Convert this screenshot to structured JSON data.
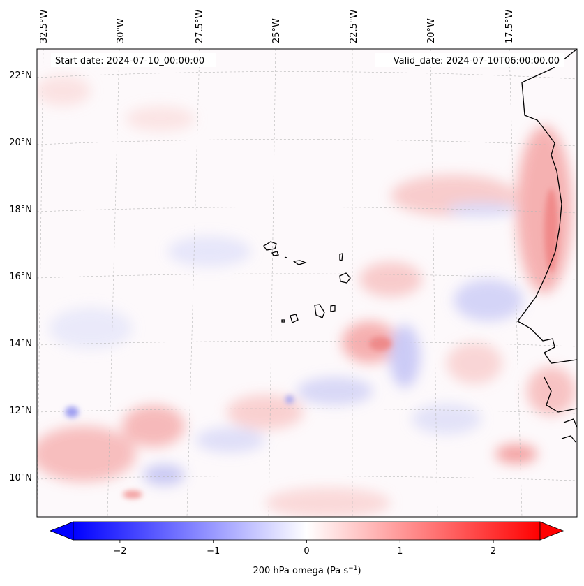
{
  "header": {
    "start_date": "Start date: 2024-07-10_00:00:00",
    "valid_date": "Valid_date: 2024-07-10T06:00:00.00"
  },
  "map": {
    "lon_labels": [
      "32.5°W",
      "30°W",
      "27.5°W",
      "25°W",
      "22.5°W",
      "20°W",
      "17.5°W"
    ],
    "lat_labels": [
      "22°N",
      "20°N",
      "18°N",
      "16°N",
      "14°N",
      "12°N",
      "10°N"
    ],
    "colors": {
      "negative": "#0000ff",
      "zero": "#ffffff",
      "positive": "#ff0000",
      "coastline": "#000000",
      "gridline": "#b0b0b0"
    }
  },
  "colorbar": {
    "ticks": [
      "−2",
      "−1",
      "0",
      "1",
      "2"
    ],
    "tick_values": [
      -2,
      -1,
      0,
      1,
      2
    ],
    "range": [
      -2.5,
      2.5
    ],
    "label_main": "200 hPa omega (Pa s",
    "label_sup": "−1",
    "label_end": ")"
  }
}
